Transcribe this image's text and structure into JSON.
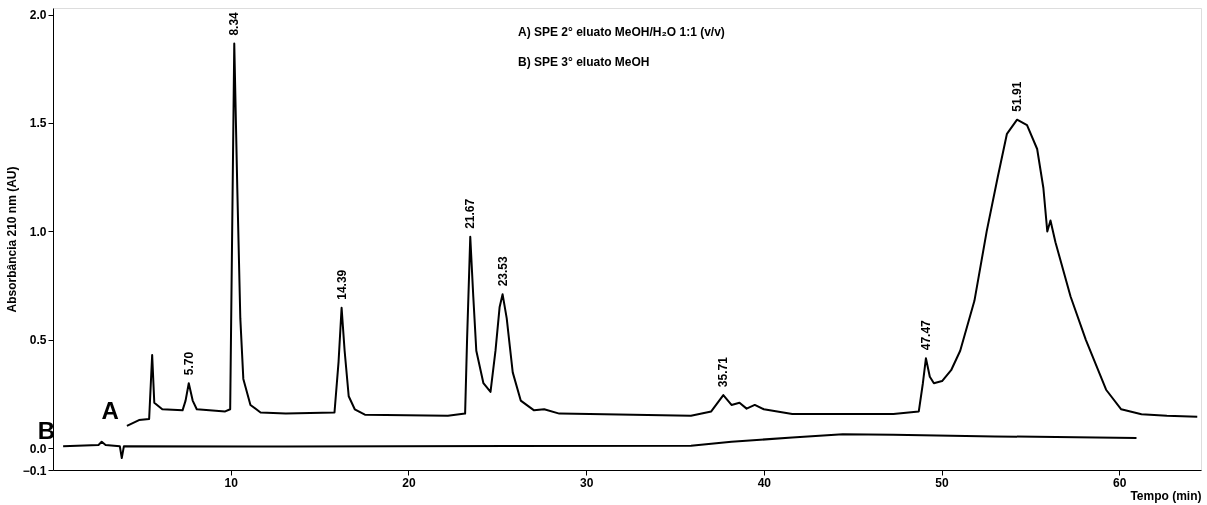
{
  "chart_data": {
    "type": "line",
    "xlabel": "Tempo (min)",
    "ylabel": "Absorbância 210 nm (AU)",
    "xlim": [
      0,
      64.6
    ],
    "ylim": [
      -0.1,
      2.03
    ],
    "xticks": [
      10,
      20,
      30,
      40,
      50,
      60
    ],
    "yticks": [
      -0.1,
      {
        "value": 0,
        "label": "0.0"
      },
      0.5,
      {
        "value": 1,
        "label": "1.0"
      },
      1.5,
      {
        "value": 2,
        "label": "2.0"
      }
    ],
    "grid": false,
    "marker": "none",
    "line_style": "solid",
    "series": [
      {
        "name": "A",
        "color": "#000000",
        "x": [
          4.16,
          4.84,
          5.41,
          5.58,
          5.7,
          6.15,
          7.29,
          7.46,
          7.64,
          7.86,
          8.09,
          9.69,
          9.97,
          10.2,
          10.37,
          10.54,
          10.71,
          11.11,
          11.68,
          13.1,
          15.84,
          16.07,
          16.24,
          16.41,
          16.64,
          16.98,
          17.55,
          22.22,
          23.19,
          23.3,
          23.48,
          23.65,
          23.82,
          24.22,
          24.62,
          24.9,
          25.13,
          25.3,
          25.53,
          25.87,
          26.32,
          27.07,
          27.64,
          28.49,
          30.2,
          35.9,
          37.04,
          37.72,
          38.18,
          38.63,
          39.03,
          39.49,
          40.0,
          41.6,
          47.29,
          48.72,
          48.95,
          49.12,
          49.34,
          49.57,
          50.03,
          50.54,
          51.05,
          51.85,
          52.54,
          53.16,
          53.68,
          54.25,
          54.81,
          55.38,
          55.73,
          55.95,
          56.13,
          56.41,
          57.26,
          58.12,
          59.26,
          60.11,
          61.25,
          62.68,
          64.39
        ],
        "values": [
          0.103,
          0.13,
          0.135,
          0.43,
          0.21,
          0.18,
          0.175,
          0.22,
          0.3,
          0.22,
          0.18,
          0.17,
          0.18,
          1.866,
          1.2,
          0.6,
          0.32,
          0.2,
          0.165,
          0.16,
          0.165,
          0.4,
          0.648,
          0.45,
          0.24,
          0.18,
          0.155,
          0.15,
          0.16,
          0.5,
          0.975,
          0.7,
          0.45,
          0.3,
          0.26,
          0.45,
          0.65,
          0.71,
          0.6,
          0.35,
          0.22,
          0.175,
          0.18,
          0.16,
          0.158,
          0.15,
          0.17,
          0.245,
          0.2,
          0.21,
          0.183,
          0.2,
          0.18,
          0.158,
          0.158,
          0.17,
          0.3,
          0.415,
          0.33,
          0.3,
          0.31,
          0.36,
          0.45,
          0.68,
          1.0,
          1.25,
          1.45,
          1.515,
          1.49,
          1.38,
          1.2,
          1.0,
          1.05,
          0.95,
          0.7,
          0.5,
          0.27,
          0.18,
          0.157,
          0.15,
          0.145
        ]
      },
      {
        "name": "B",
        "color": "#000000",
        "x": [
          0.57,
          2.56,
          2.74,
          2.96,
          3.76,
          3.87,
          3.99,
          13.1,
          35.9,
          38.18,
          41.6,
          44.44,
          47.29,
          52.99,
          58.69,
          60.97
        ],
        "values": [
          0.01,
          0.015,
          0.03,
          0.015,
          0.01,
          -0.045,
          0.01,
          0.008,
          0.012,
          0.03,
          0.05,
          0.065,
          0.062,
          0.055,
          0.05,
          0.048
        ]
      }
    ],
    "annotations": [
      "A) SPE 2° eluato MeOH/H₂O 1:1 (v/v)",
      "B) SPE 3° eluato MeOH",
      {
        "text": "5.70",
        "x": 7.64,
        "y": 0.3
      },
      {
        "text": "8.34",
        "x": 10.2,
        "y": 1.866
      },
      {
        "text": "14.39",
        "x": 16.24,
        "y": 0.648
      },
      {
        "text": "21.67",
        "x": 23.48,
        "y": 0.975
      },
      {
        "text": "23.53",
        "x": 25.3,
        "y": 0.71
      },
      {
        "text": "35.71",
        "x": 37.72,
        "y": 0.245
      },
      {
        "text": "47.47",
        "x": 49.12,
        "y": 0.415
      },
      {
        "text": "51.91",
        "x": 54.25,
        "y": 1.515
      }
    ]
  }
}
